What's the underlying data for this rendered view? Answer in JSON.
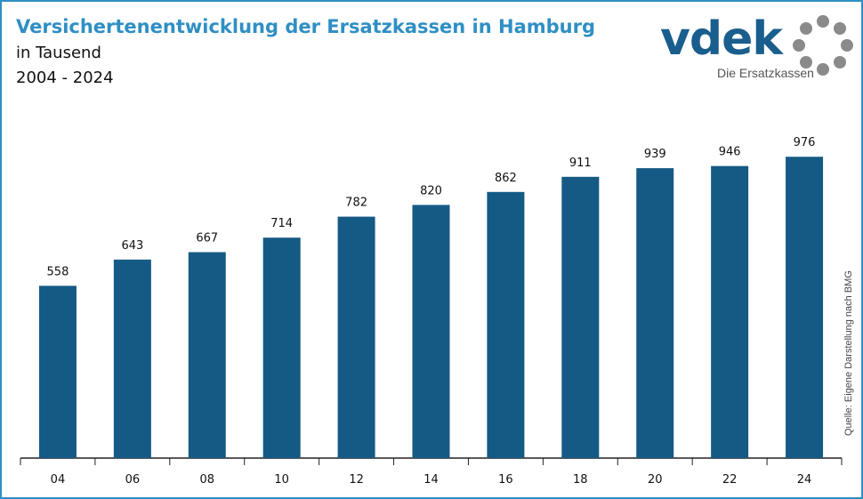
{
  "header": {
    "title": "Versichertenentwicklung der Ersatzkassen in Hamburg",
    "subtitle": "in Tausend",
    "period": "2004 - 2024"
  },
  "logo": {
    "wordmark": "vdek",
    "tagline": "Die Ersatzkassen",
    "accent_color": "#1a5e8e",
    "ring_color": "#8a8a8a"
  },
  "source_note": "Quelle: Eigene Darstellung nach BMG",
  "colors": {
    "bar": "#155a85",
    "title": "#2f8fc4",
    "frame": "#2f8fc4"
  },
  "chart_data": {
    "type": "bar",
    "title": "Versichertenentwicklung der Ersatzkassen in Hamburg",
    "subtitle": "in Tausend",
    "categories": [
      "04",
      "06",
      "08",
      "10",
      "12",
      "14",
      "16",
      "18",
      "20",
      "22",
      "24"
    ],
    "values": [
      558,
      643,
      667,
      714,
      782,
      820,
      862,
      911,
      939,
      946,
      976
    ],
    "xlabel": "",
    "ylabel": "",
    "ylim": [
      0,
      1066
    ],
    "grid": false,
    "legend": "none"
  }
}
